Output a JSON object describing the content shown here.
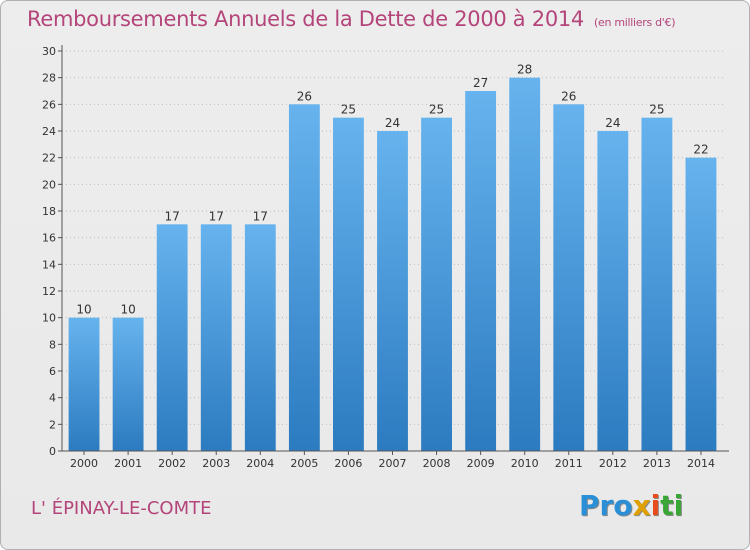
{
  "header": {
    "title": "Remboursements Annuels de la Dette de 2000 à 2014",
    "subtitle": "(en milliers d'€)"
  },
  "footer": {
    "commune": "L' ÉPINAY-LE-COMTE",
    "logo": [
      "Pro",
      "x",
      "i",
      "ti"
    ]
  },
  "colors": {
    "bar_top": "#66b3ee",
    "bar_bottom": "#2c7bc0",
    "title": "#b4457a"
  },
  "chart_data": {
    "type": "bar",
    "title": "Remboursements Annuels de la Dette de 2000 à 2014",
    "xlabel": "",
    "ylabel": "",
    "ylim": [
      0,
      30
    ],
    "yticks": [
      0,
      2,
      4,
      6,
      8,
      10,
      12,
      14,
      16,
      18,
      20,
      22,
      24,
      26,
      28,
      30
    ],
    "grid": true,
    "legend": "none",
    "categories": [
      "2000",
      "2001",
      "2002",
      "2003",
      "2004",
      "2005",
      "2006",
      "2007",
      "2008",
      "2009",
      "2010",
      "2011",
      "2012",
      "2013",
      "2014"
    ],
    "values": [
      10,
      10,
      17,
      17,
      17,
      26,
      25,
      24,
      25,
      27,
      28,
      26,
      24,
      25,
      22
    ]
  }
}
